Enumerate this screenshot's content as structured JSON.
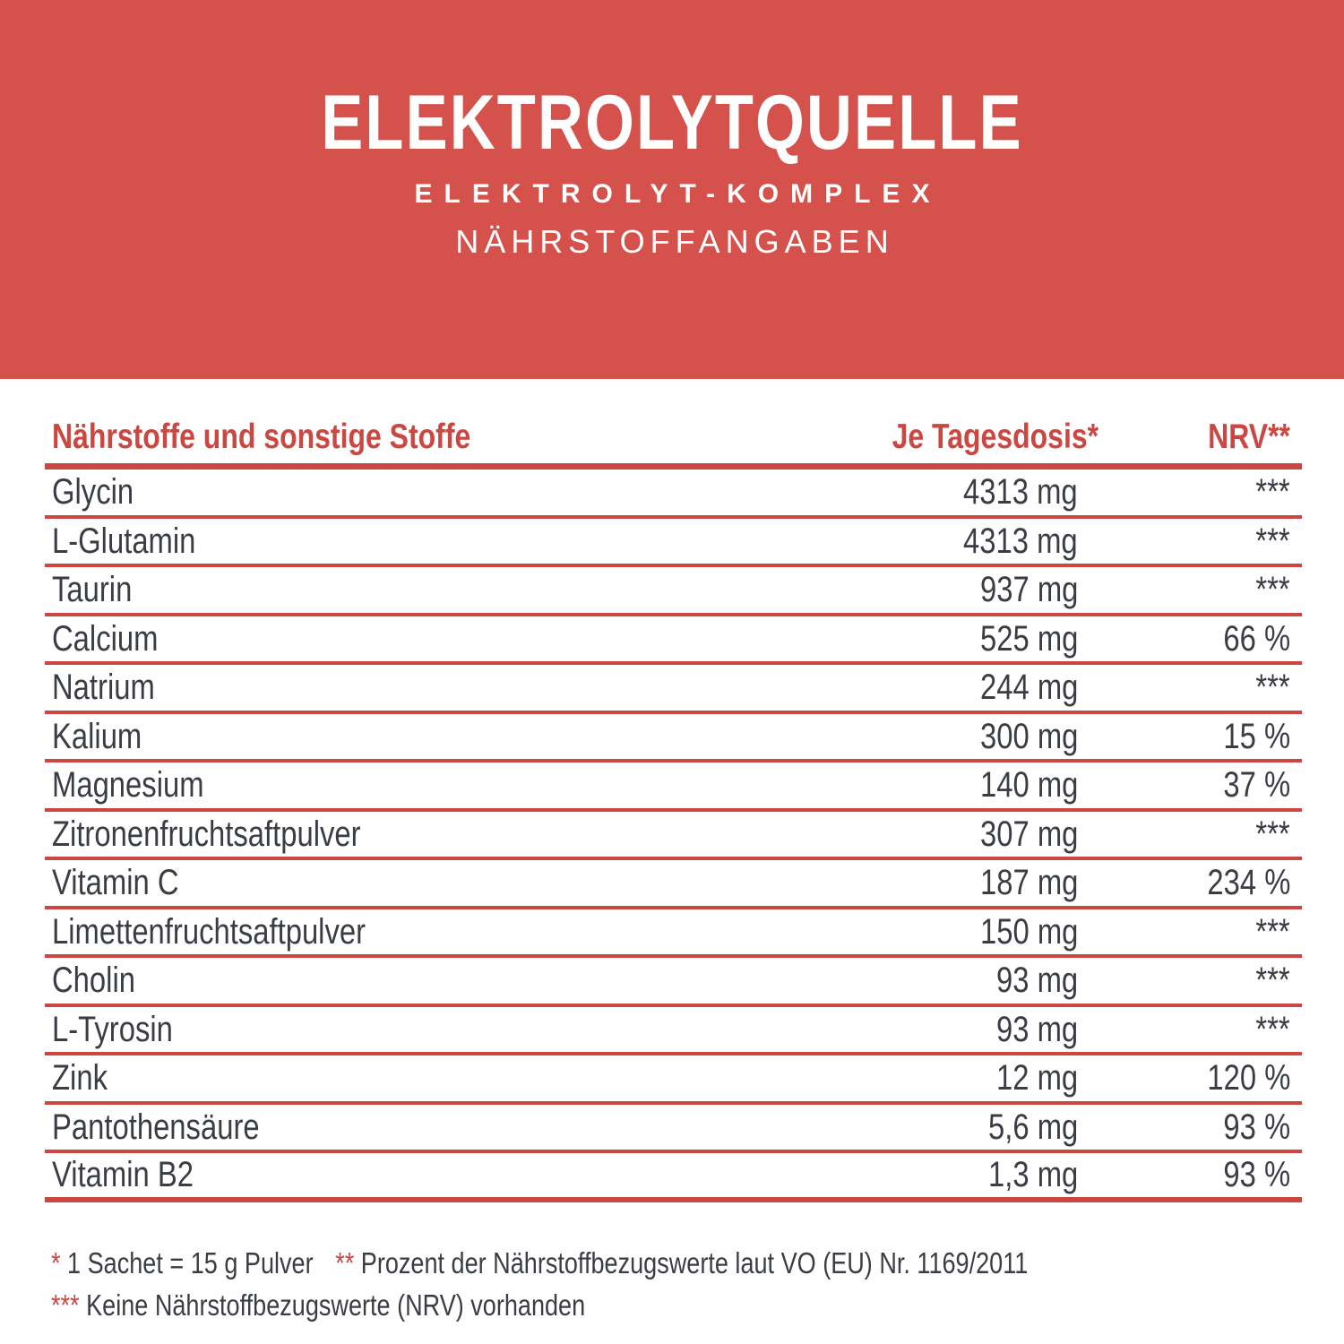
{
  "header": {
    "title": "ELEKTROLYTQUELLE",
    "subtitle": "ELEKTROLYT-KOMPLEX",
    "subtitle2": "NÄHRSTOFFANGABEN"
  },
  "table": {
    "columns": {
      "nutrients": "Nährstoffe und sonstige Stoffe",
      "daily_dose": "Je Tagesdosis*",
      "nrv": "NRV**"
    },
    "rows": [
      {
        "name": "Glycin",
        "amount": "4313 mg",
        "nrv": "***"
      },
      {
        "name": "L-Glutamin",
        "amount": "4313 mg",
        "nrv": "***"
      },
      {
        "name": "Taurin",
        "amount": "937 mg",
        "nrv": "***"
      },
      {
        "name": "Calcium",
        "amount": "525 mg",
        "nrv": "66 %"
      },
      {
        "name": "Natrium",
        "amount": "244 mg",
        "nrv": "***"
      },
      {
        "name": "Kalium",
        "amount": "300 mg",
        "nrv": "15 %"
      },
      {
        "name": "Magnesium",
        "amount": "140 mg",
        "nrv": "37 %"
      },
      {
        "name": "Zitronenfruchtsaftpulver",
        "amount": "307 mg",
        "nrv": "***"
      },
      {
        "name": "Vitamin C",
        "amount": "187 mg",
        "nrv": "234 %"
      },
      {
        "name": "Limettenfruchtsaftpulver",
        "amount": "150 mg",
        "nrv": "***"
      },
      {
        "name": "Cholin",
        "amount": "93 mg",
        "nrv": "***"
      },
      {
        "name": "L-Tyrosin",
        "amount": "93 mg",
        "nrv": "***"
      },
      {
        "name": "Zink",
        "amount": "12 mg",
        "nrv": "120 %"
      },
      {
        "name": "Pantothensäure",
        "amount": "5,6 mg",
        "nrv": "93 %"
      },
      {
        "name": "Vitamin B2",
        "amount": "1,3 mg",
        "nrv": "93 %"
      }
    ]
  },
  "footnotes": {
    "note1": {
      "marker": "*",
      "text": "1 Sachet = 15 g Pulver"
    },
    "note2": {
      "marker": "**",
      "text": "Prozent der Nährstoffbezugswerte laut VO (EU) Nr. 1169/2011"
    },
    "note3": {
      "marker": "***",
      "text": "Keine Nährstoffbezugswerte (NRV) vorhanden"
    }
  },
  "colors": {
    "banner": "#D5514B",
    "accent": "#CB4742",
    "text": "#3A3E44"
  }
}
